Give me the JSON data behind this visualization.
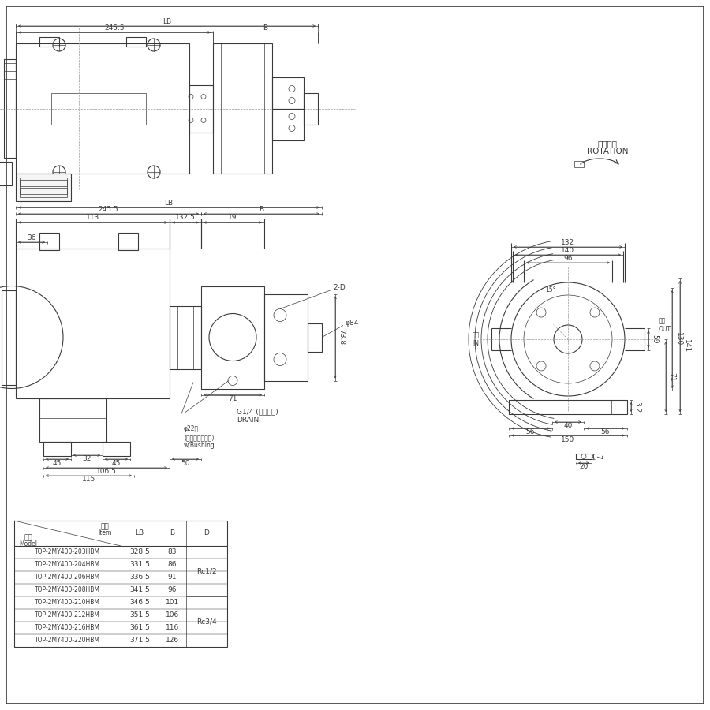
{
  "bg_color": "#ffffff",
  "line_color": "#3a3a3a",
  "dim_color": "#3a3a3a",
  "table_rows": [
    [
      "TOP-2MY400-203HBM",
      "328.5",
      "83"
    ],
    [
      "TOP-2MY400-204HBM",
      "331.5",
      "86"
    ],
    [
      "TOP-2MY400-206HBM",
      "336.5",
      "91"
    ],
    [
      "TOP-2MY400-208HBM",
      "341.5",
      "96"
    ],
    [
      "TOP-2MY400-210HBM",
      "346.5",
      "101"
    ],
    [
      "TOP-2MY400-212HBM",
      "351.5",
      "106"
    ],
    [
      "TOP-2MY400-216HBM",
      "361.5",
      "116"
    ],
    [
      "TOP-2MY400-220HBM",
      "371.5",
      "126"
    ]
  ],
  "d_label1": "Rc1/2",
  "d_label2": "Rc3/4",
  "rotation_ja": "回転方向",
  "rotation_en": "ROTATION",
  "label_LB": "LB",
  "label_B": "B",
  "label_245": "245.5",
  "label_113": "113",
  "label_1325": "132.5",
  "label_19": "19",
  "label_36": "36",
  "label_32": "32",
  "label_50": "50",
  "label_45a": "45",
  "label_45b": "45",
  "label_1065": "106.5",
  "label_115": "115",
  "label_2D": "2-D",
  "label_phi84": "φ84",
  "label_phi22": "φ22稴\n(ゴムブッシュ付)\nw/Bushing",
  "label_G14": "G1/4 (ドレン稴)\nDRAIN",
  "label_71a": "71",
  "label_738": "73.8",
  "label_15deg": "15°",
  "label_suction": "吸入\nIN",
  "label_discharge": "吐出\nOUT",
  "label_132": "132",
  "label_140": "140",
  "label_96": "96",
  "label_130": "130",
  "label_141": "141",
  "label_71b": "71",
  "label_59": "59",
  "label_32b": "3.2",
  "label_40": "40",
  "label_56a": "56",
  "label_56b": "56",
  "label_150": "150",
  "label_20": "20",
  "label_7": "7",
  "label_item_ja": "項目",
  "label_item_en": "Item",
  "label_model_ja": "形式",
  "label_model_en": "Model"
}
